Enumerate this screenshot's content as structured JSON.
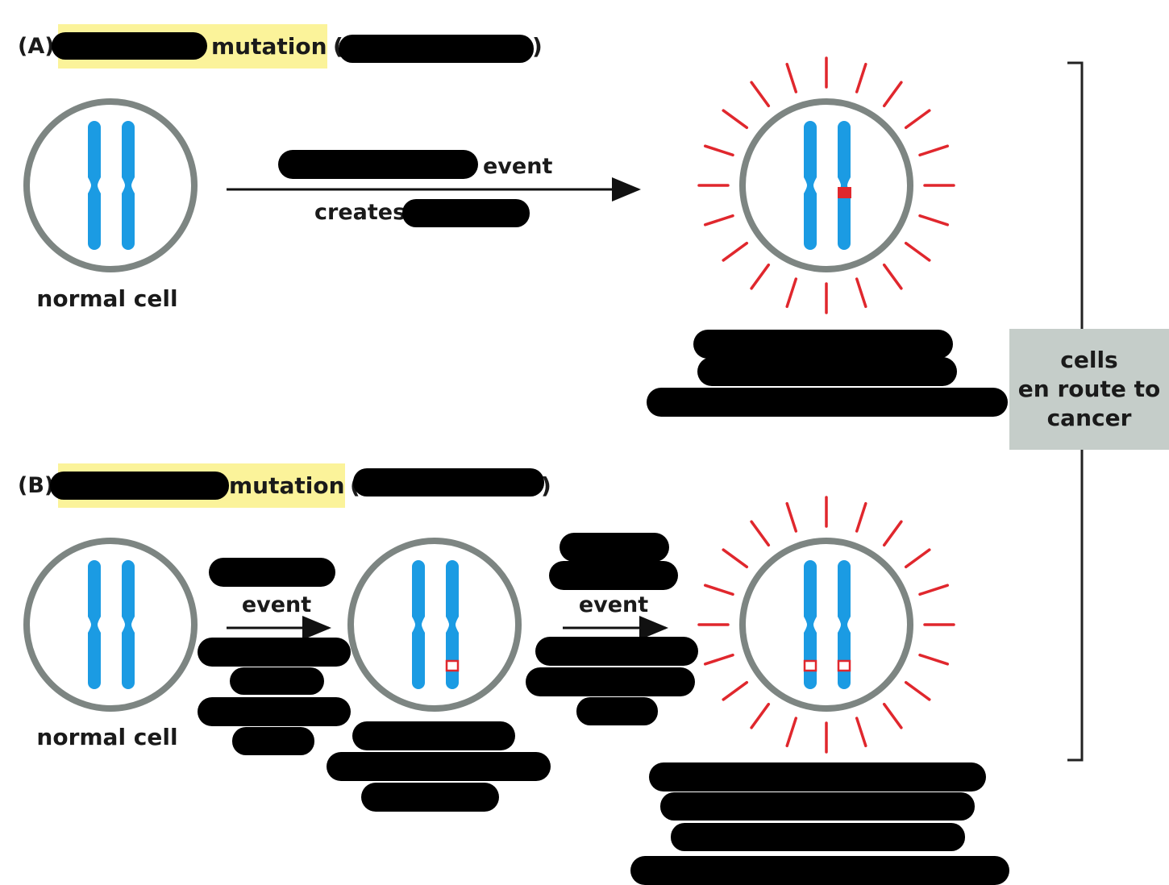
{
  "panel_a": {
    "label": "(A)",
    "heading_word": "mutation",
    "paren_open": "(",
    "paren_close": ")",
    "arrow_top": "event",
    "arrow_bottom": "creates",
    "start_label": "normal cell"
  },
  "panel_b": {
    "label": "(B)",
    "heading_word": "mutation",
    "paren_open": "(",
    "paren_close": ")",
    "arrow1_label": "event",
    "arrow2_label": "event",
    "start_label": "normal cell"
  },
  "side_box": {
    "line1": "cells",
    "line2": "en route to",
    "line3": "cancer"
  },
  "colors": {
    "chromosome": "#1b9be3",
    "cell_outline": "#7d8582",
    "ray": "#e0272d",
    "mutation_mark": "#e0272d",
    "highlight": "#fbf39a",
    "side_box": "#c5cdc9",
    "redaction": "#000000"
  }
}
